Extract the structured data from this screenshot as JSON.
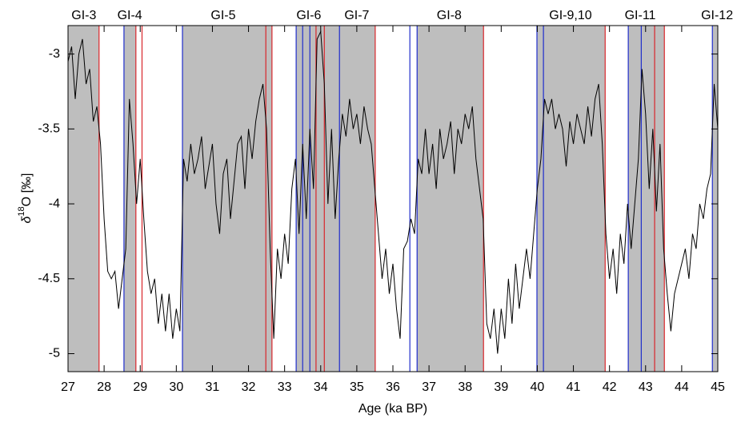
{
  "chart_data": {
    "type": "line",
    "xlabel": "Age (ka BP)",
    "ylabel": {
      "prefix": "δ",
      "sup": "18",
      "suffix": "O [‰]"
    },
    "xlim": [
      27,
      45
    ],
    "ylim": [
      -5.12,
      -2.81
    ],
    "xticks": [
      27,
      28,
      29,
      30,
      31,
      32,
      33,
      34,
      35,
      36,
      37,
      38,
      39,
      40,
      41,
      42,
      43,
      44,
      45
    ],
    "yticks": [
      -5,
      -4.5,
      -4,
      -3.5,
      -3
    ],
    "shade_color": "#bebebe",
    "shaded_intervals": [
      [
        27,
        27.86
      ],
      [
        28.55,
        28.88
      ],
      [
        30.17,
        32.65
      ],
      [
        33.32,
        35.51
      ],
      [
        36.67,
        38.51
      ],
      [
        39.99,
        41.88
      ],
      [
        42.52,
        43.52
      ],
      [
        44.85,
        45
      ]
    ],
    "blue_color": "#1f2dcc",
    "blue_lines": [
      28.55,
      30.17,
      33.32,
      33.5,
      33.7,
      34.52,
      36.47,
      36.67,
      39.99,
      40.17,
      42.52,
      42.88,
      44.85
    ],
    "red_color": "#d9262b",
    "red_lines": [
      27.86,
      28.88,
      29.05,
      32.48,
      32.65,
      33.87,
      34.1,
      35.51,
      38.51,
      41.88,
      43.25,
      43.52
    ],
    "annotations": [
      {
        "text": "GI-3",
        "x": 27.44
      },
      {
        "text": "GI-4",
        "x": 28.71
      },
      {
        "text": "GI-5",
        "x": 31.3
      },
      {
        "text": "GI-6",
        "x": 33.67
      },
      {
        "text": "GI-7",
        "x": 35.0
      },
      {
        "text": "GI-8",
        "x": 37.56
      },
      {
        "text": "GI-9,10",
        "x": 40.92
      },
      {
        "text": "GI-11",
        "x": 42.85
      },
      {
        "text": "GI-12",
        "x": 44.98
      }
    ],
    "x": [
      27.0,
      27.1,
      27.2,
      27.3,
      27.4,
      27.5,
      27.6,
      27.7,
      27.8,
      27.9,
      28.0,
      28.1,
      28.2,
      28.3,
      28.4,
      28.5,
      28.6,
      28.7,
      28.8,
      28.9,
      29.0,
      29.1,
      29.2,
      29.3,
      29.4,
      29.5,
      29.6,
      29.7,
      29.8,
      29.9,
      30.0,
      30.1,
      30.2,
      30.3,
      30.4,
      30.5,
      30.6,
      30.7,
      30.8,
      30.9,
      31.0,
      31.1,
      31.2,
      31.3,
      31.4,
      31.5,
      31.6,
      31.7,
      31.8,
      31.9,
      32.0,
      32.1,
      32.2,
      32.3,
      32.4,
      32.5,
      32.6,
      32.7,
      32.8,
      32.9,
      33.0,
      33.1,
      33.2,
      33.3,
      33.4,
      33.5,
      33.6,
      33.7,
      33.8,
      33.9,
      34.0,
      34.1,
      34.2,
      34.3,
      34.4,
      34.5,
      34.6,
      34.7,
      34.8,
      34.9,
      35.0,
      35.1,
      35.2,
      35.3,
      35.4,
      35.5,
      35.6,
      35.7,
      35.8,
      35.9,
      36.0,
      36.1,
      36.2,
      36.3,
      36.4,
      36.5,
      36.6,
      36.7,
      36.8,
      36.9,
      37.0,
      37.1,
      37.2,
      37.3,
      37.4,
      37.5,
      37.6,
      37.7,
      37.8,
      37.9,
      38.0,
      38.1,
      38.2,
      38.3,
      38.4,
      38.5,
      38.6,
      38.7,
      38.8,
      38.9,
      39.0,
      39.1,
      39.2,
      39.3,
      39.4,
      39.5,
      39.6,
      39.7,
      39.8,
      39.9,
      40.0,
      40.1,
      40.2,
      40.3,
      40.4,
      40.5,
      40.6,
      40.7,
      40.8,
      40.9,
      41.0,
      41.1,
      41.2,
      41.3,
      41.4,
      41.5,
      41.6,
      41.7,
      41.8,
      41.9,
      42.0,
      42.1,
      42.2,
      42.3,
      42.4,
      42.5,
      42.6,
      42.7,
      42.8,
      42.9,
      43.0,
      43.1,
      43.2,
      43.3,
      43.4,
      43.5,
      43.6,
      43.7,
      43.8,
      43.9,
      44.0,
      44.1,
      44.2,
      44.3,
      44.4,
      44.5,
      44.6,
      44.7,
      44.8,
      44.9,
      45.0
    ],
    "series": [
      {
        "color": "#000000",
        "values": [
          -3.05,
          -2.95,
          -3.3,
          -3.0,
          -2.9,
          -3.2,
          -3.1,
          -3.45,
          -3.35,
          -3.6,
          -4.1,
          -4.45,
          -4.5,
          -4.45,
          -4.7,
          -4.5,
          -4.3,
          -3.3,
          -3.6,
          -4.0,
          -3.7,
          -4.1,
          -4.45,
          -4.6,
          -4.5,
          -4.8,
          -4.6,
          -4.85,
          -4.6,
          -4.9,
          -4.7,
          -4.85,
          -3.7,
          -3.85,
          -3.6,
          -3.8,
          -3.7,
          -3.55,
          -3.9,
          -3.75,
          -3.6,
          -4.0,
          -4.2,
          -3.8,
          -3.7,
          -4.1,
          -3.85,
          -3.6,
          -3.55,
          -3.9,
          -3.5,
          -3.7,
          -3.45,
          -3.3,
          -3.2,
          -3.5,
          -4.3,
          -4.9,
          -4.3,
          -4.5,
          -4.2,
          -4.4,
          -3.9,
          -3.7,
          -4.2,
          -3.6,
          -4.1,
          -3.5,
          -3.9,
          -2.9,
          -2.85,
          -3.2,
          -4.0,
          -3.5,
          -4.1,
          -3.7,
          -3.4,
          -3.55,
          -3.3,
          -3.5,
          -3.4,
          -3.6,
          -3.35,
          -3.5,
          -3.6,
          -3.9,
          -4.2,
          -4.5,
          -4.3,
          -4.6,
          -4.4,
          -4.7,
          -4.9,
          -4.3,
          -4.25,
          -4.1,
          -4.2,
          -3.7,
          -3.8,
          -3.5,
          -3.8,
          -3.6,
          -3.9,
          -3.5,
          -3.7,
          -3.6,
          -3.45,
          -3.8,
          -3.5,
          -3.6,
          -3.4,
          -3.5,
          -3.35,
          -3.7,
          -3.9,
          -4.1,
          -4.8,
          -4.9,
          -4.7,
          -5.0,
          -4.7,
          -4.9,
          -4.5,
          -4.8,
          -4.4,
          -4.7,
          -4.5,
          -4.3,
          -4.5,
          -4.2,
          -3.9,
          -3.7,
          -3.3,
          -3.4,
          -3.3,
          -3.5,
          -3.4,
          -3.5,
          -3.75,
          -3.45,
          -3.6,
          -3.4,
          -3.5,
          -3.6,
          -3.35,
          -3.55,
          -3.3,
          -3.2,
          -3.6,
          -4.2,
          -4.5,
          -4.3,
          -4.6,
          -4.2,
          -4.4,
          -4.0,
          -4.3,
          -4.0,
          -3.7,
          -3.1,
          -3.4,
          -3.9,
          -3.5,
          -4.05,
          -3.6,
          -4.3,
          -4.6,
          -4.85,
          -4.6,
          -4.5,
          -4.4,
          -4.3,
          -4.5,
          -4.2,
          -4.3,
          -4.0,
          -4.1,
          -3.9,
          -3.8,
          -3.2,
          -3.5
        ]
      }
    ]
  }
}
